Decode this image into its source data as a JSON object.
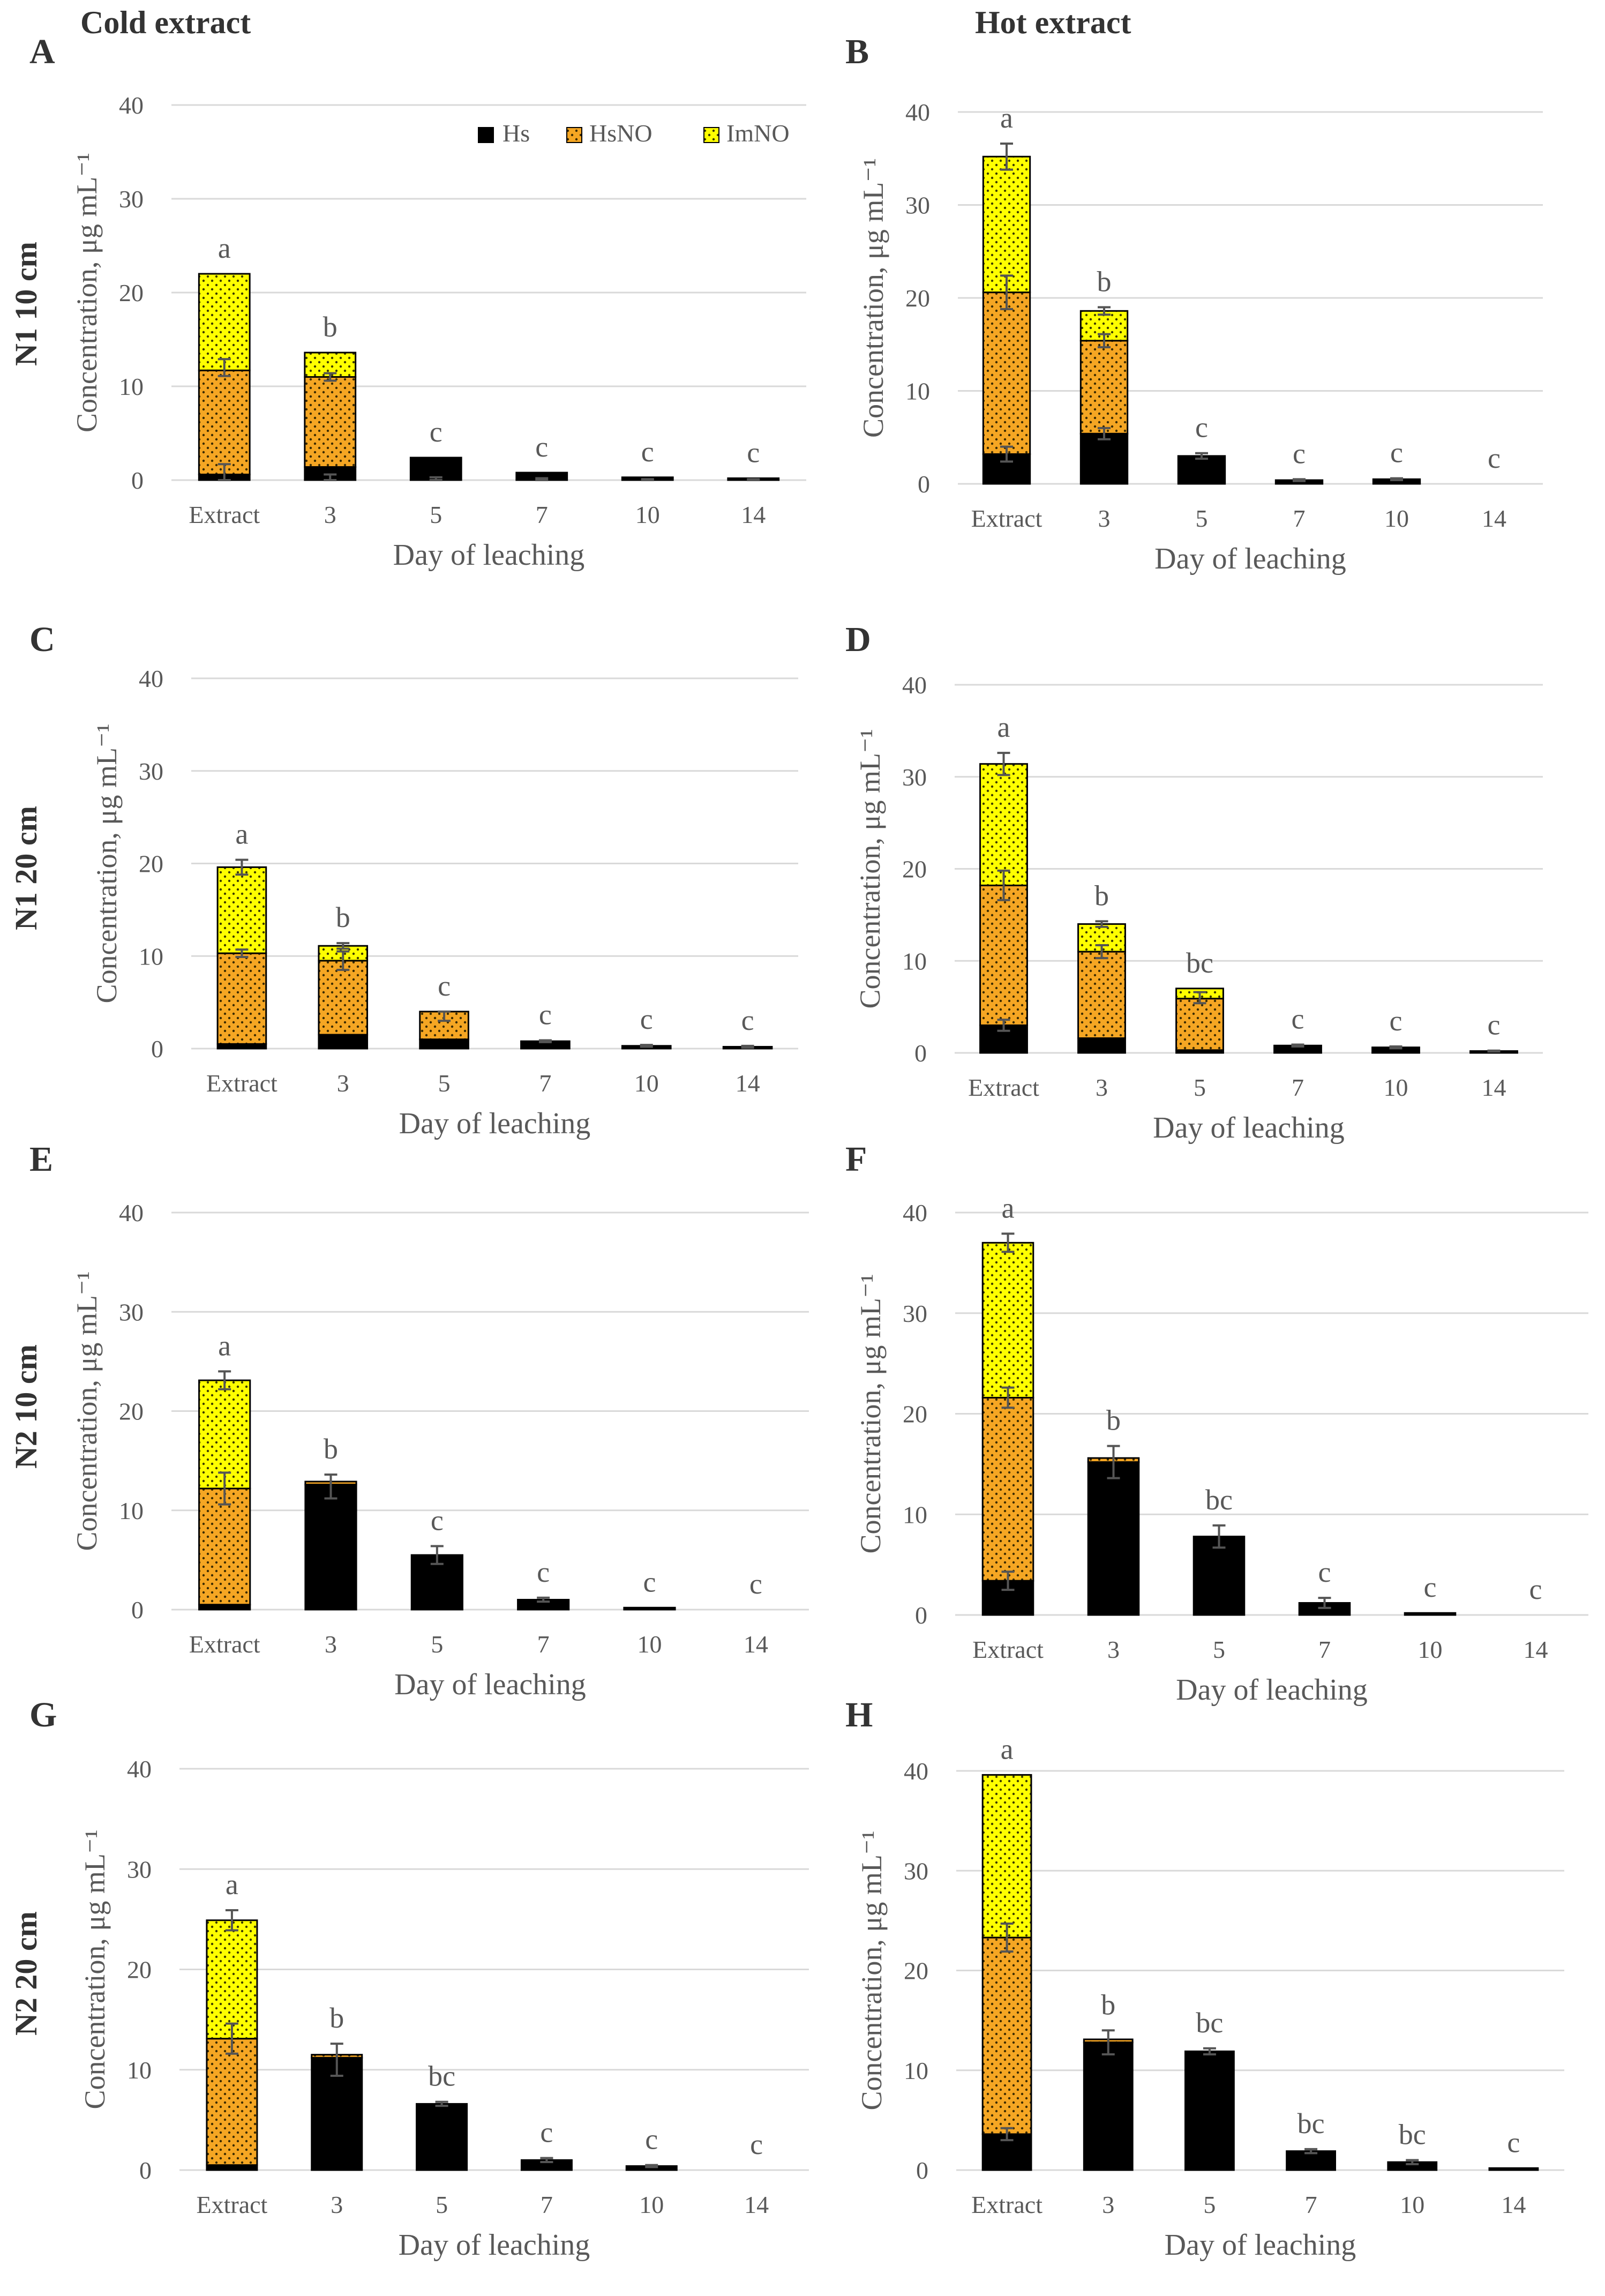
{
  "figure": {
    "col_titles": [
      "Cold extract",
      "Hot extract"
    ],
    "legend": [
      {
        "name": "Hs",
        "color": "#000000"
      },
      {
        "name": "HsNO",
        "color": "#f5a623"
      },
      {
        "name": "ImNO",
        "color": "#ffff00"
      }
    ]
  },
  "chart_data": [
    {
      "type": "bar",
      "stacked": true,
      "panel": "A",
      "row_label": "N1 10 cm",
      "column": "Cold extract",
      "xlabel": "Day of leaching",
      "ylabel": "Concentration, μg mL⁻¹",
      "ylim": [
        0,
        40
      ],
      "yticks": [
        0,
        10,
        20,
        30,
        40
      ],
      "categories": [
        "Extract",
        "3",
        "5",
        "7",
        "10",
        "14"
      ],
      "series": [
        {
          "name": "Hs",
          "values": [
            0.6,
            1.4,
            2.4,
            0.8,
            0.3,
            0.2
          ]
        },
        {
          "name": "HsNO",
          "values": [
            11.1,
            9.6,
            0,
            0,
            0,
            0
          ]
        },
        {
          "name": "ImNO",
          "values": [
            10.3,
            2.6,
            0,
            0,
            0,
            0
          ]
        }
      ],
      "errors": [
        [
          0.5,
          1.2,
          12.0,
          0.9
        ],
        [
          0,
          0.6,
          11.0,
          0.4
        ],
        [
          0,
          0.3,
          0,
          0
        ],
        [
          0,
          0.2,
          0,
          0
        ],
        [
          0,
          0.1,
          0,
          0
        ],
        [
          0,
          0.1,
          0,
          0
        ]
      ],
      "letters": [
        "a",
        "b",
        "c",
        "c",
        "c",
        "c"
      ]
    },
    {
      "type": "bar",
      "stacked": true,
      "panel": "B",
      "row_label": "",
      "column": "Hot extract",
      "xlabel": "Day of leaching",
      "ylabel": "Concentration, μg mL⁻¹",
      "ylim": [
        0,
        40
      ],
      "yticks": [
        0,
        10,
        20,
        30,
        40
      ],
      "categories": [
        "Extract",
        "3",
        "5",
        "7",
        "10",
        "14"
      ],
      "series": [
        {
          "name": "Hs",
          "values": [
            3.2,
            5.4,
            3.0,
            0.4,
            0.5,
            0
          ]
        },
        {
          "name": "HsNO",
          "values": [
            17.4,
            10.0,
            0,
            0,
            0,
            0
          ]
        },
        {
          "name": "ImNO",
          "values": [
            14.6,
            3.2,
            0,
            0,
            0,
            0
          ]
        }
      ],
      "errors": [
        [
          3.2,
          0.8,
          20.6,
          1.8,
          35.2,
          1.4
        ],
        [
          5.4,
          0.6,
          15.4,
          0.7,
          18.6,
          0.4
        ],
        [
          3.0,
          0.3
        ],
        [
          0.4,
          0.1
        ],
        [
          0.5,
          0.1
        ],
        [
          0,
          0
        ]
      ],
      "letters": [
        "a",
        "b",
        "c",
        "c",
        "c",
        "c"
      ]
    },
    {
      "type": "bar",
      "stacked": true,
      "panel": "C",
      "row_label": "N1 20 cm",
      "column": "Cold extract",
      "xlabel": "Day of leaching",
      "ylabel": "Concentration, μg mL⁻¹",
      "ylim": [
        0,
        40
      ],
      "yticks": [
        0,
        10,
        20,
        30,
        40
      ],
      "categories": [
        "Extract",
        "3",
        "5",
        "7",
        "10",
        "14"
      ],
      "series": [
        {
          "name": "Hs",
          "values": [
            0.5,
            1.5,
            1.0,
            0.8,
            0.3,
            0.2
          ]
        },
        {
          "name": "HsNO",
          "values": [
            9.8,
            8.0,
            3.0,
            0,
            0,
            0
          ]
        },
        {
          "name": "ImNO",
          "values": [
            9.3,
            1.6,
            0,
            0,
            0,
            0
          ]
        }
      ],
      "errors": [
        [
          10.3,
          0.4,
          19.6,
          0.8
        ],
        [
          9.5,
          1.0,
          11.1,
          0.3
        ],
        [
          3.5,
          0.5
        ],
        [
          0.8,
          0.1
        ],
        [
          0.3,
          0.1
        ],
        [
          0.2,
          0.1
        ]
      ],
      "letters": [
        "a",
        "b",
        "c",
        "c",
        "c",
        "c"
      ]
    },
    {
      "type": "bar",
      "stacked": true,
      "panel": "D",
      "row_label": "",
      "column": "Hot extract",
      "xlabel": "Day of leaching",
      "ylabel": "Concentration, μg mL⁻¹",
      "ylim": [
        0,
        40
      ],
      "yticks": [
        0,
        10,
        20,
        30,
        40
      ],
      "categories": [
        "Extract",
        "3",
        "5",
        "7",
        "10",
        "14"
      ],
      "series": [
        {
          "name": "Hs",
          "values": [
            3.0,
            1.6,
            0.3,
            0.8,
            0.6,
            0.2
          ]
        },
        {
          "name": "HsNO",
          "values": [
            15.2,
            9.4,
            5.6,
            0,
            0,
            0
          ]
        },
        {
          "name": "ImNO",
          "values": [
            13.2,
            3.0,
            1.1,
            0,
            0,
            0
          ]
        }
      ],
      "errors": [
        [
          3.0,
          0.6,
          18.2,
          1.6,
          31.4,
          1.2
        ],
        [
          11.0,
          0.7,
          14.0,
          0.3
        ],
        [
          6.0,
          0.6
        ],
        [
          0.8,
          0.1
        ],
        [
          0.6,
          0.1
        ],
        [
          0.2,
          0.05
        ]
      ],
      "letters": [
        "a",
        "b",
        "bc",
        "c",
        "c",
        "c"
      ]
    },
    {
      "type": "bar",
      "stacked": true,
      "panel": "E",
      "row_label": "N2 10 cm",
      "column": "Cold extract",
      "xlabel": "Day of leaching",
      "ylabel": "Concentration, μg mL⁻¹",
      "ylim": [
        0,
        40
      ],
      "yticks": [
        0,
        10,
        20,
        30,
        40
      ],
      "categories": [
        "Extract",
        "3",
        "5",
        "7",
        "10",
        "14"
      ],
      "series": [
        {
          "name": "Hs",
          "values": [
            0.5,
            12.6,
            5.5,
            1.0,
            0.2,
            0
          ]
        },
        {
          "name": "HsNO",
          "values": [
            11.7,
            0.3,
            0,
            0,
            0,
            0
          ]
        },
        {
          "name": "ImNO",
          "values": [
            10.9,
            0,
            0,
            0,
            0,
            0
          ]
        }
      ],
      "errors": [
        [
          12.2,
          1.6,
          23.1,
          0.9
        ],
        [
          12.4,
          1.2
        ],
        [
          5.5,
          0.9
        ],
        [
          1.0,
          0.2
        ],
        [
          0.2,
          0
        ],
        [
          0,
          0
        ]
      ],
      "letters": [
        "a",
        "b",
        "c",
        "c",
        "c",
        "c"
      ]
    },
    {
      "type": "bar",
      "stacked": true,
      "panel": "F",
      "row_label": "",
      "column": "Hot extract",
      "xlabel": "Day of leaching",
      "ylabel": "Concentration, μg mL⁻¹",
      "ylim": [
        0,
        40
      ],
      "yticks": [
        0,
        10,
        20,
        30,
        40
      ],
      "categories": [
        "Extract",
        "3",
        "5",
        "7",
        "10",
        "14"
      ],
      "series": [
        {
          "name": "Hs",
          "values": [
            3.4,
            15.2,
            7.8,
            1.2,
            0.2,
            0
          ]
        },
        {
          "name": "HsNO",
          "values": [
            18.2,
            0.4,
            0,
            0,
            0,
            0
          ]
        },
        {
          "name": "ImNO",
          "values": [
            15.4,
            0,
            0,
            0,
            0,
            0
          ]
        }
      ],
      "errors": [
        [
          3.4,
          0.9,
          21.6,
          1.0,
          37.0,
          0.9
        ],
        [
          15.2,
          1.6
        ],
        [
          7.8,
          1.1
        ],
        [
          1.2,
          0.5
        ],
        [
          0.2,
          0
        ],
        [
          0,
          0
        ]
      ],
      "letters": [
        "a",
        "b",
        "bc",
        "c",
        "c",
        "c"
      ]
    },
    {
      "type": "bar",
      "stacked": true,
      "panel": "G",
      "row_label": "N2 20 cm",
      "column": "Cold extract",
      "xlabel": "Day of leaching",
      "ylabel": "Concentration, μg mL⁻¹",
      "ylim": [
        0,
        40
      ],
      "yticks": [
        0,
        10,
        20,
        30,
        40
      ],
      "categories": [
        "Extract",
        "3",
        "5",
        "7",
        "10",
        "14"
      ],
      "series": [
        {
          "name": "Hs",
          "values": [
            0.5,
            11.2,
            6.6,
            1.0,
            0.4,
            0
          ]
        },
        {
          "name": "HsNO",
          "values": [
            12.6,
            0.3,
            0,
            0,
            0,
            0
          ]
        },
        {
          "name": "ImNO",
          "values": [
            11.8,
            0,
            0,
            0,
            0,
            0
          ]
        }
      ],
      "errors": [
        [
          13.1,
          1.5,
          24.9,
          1.0
        ],
        [
          11.0,
          1.6
        ],
        [
          6.6,
          0.2
        ],
        [
          1.0,
          0.2
        ],
        [
          0.4,
          0.1
        ],
        [
          0,
          0
        ]
      ],
      "letters": [
        "a",
        "b",
        "bc",
        "c",
        "c",
        "c"
      ]
    },
    {
      "type": "bar",
      "stacked": true,
      "panel": "H",
      "row_label": "",
      "column": "Hot extract",
      "xlabel": "Day of leaching",
      "ylabel": "Concentration, μg mL⁻¹",
      "ylim": [
        0,
        40
      ],
      "yticks": [
        0,
        10,
        20,
        30,
        40
      ],
      "categories": [
        "Extract",
        "3",
        "5",
        "7",
        "10",
        "14"
      ],
      "series": [
        {
          "name": "Hs",
          "values": [
            3.6,
            12.8,
            11.9,
            1.9,
            0.8,
            0.2
          ]
        },
        {
          "name": "HsNO",
          "values": [
            19.7,
            0.3,
            0,
            0,
            0,
            0
          ]
        },
        {
          "name": "ImNO",
          "values": [
            16.3,
            0,
            0,
            0,
            0,
            0
          ]
        }
      ],
      "errors": [
        [
          3.6,
          0.6,
          23.3,
          1.4
        ],
        [
          12.8,
          1.2
        ],
        [
          11.9,
          0.3
        ],
        [
          1.9,
          0.2
        ],
        [
          0.8,
          0.2
        ],
        [
          0.2,
          0
        ]
      ],
      "letters": [
        "a",
        "b",
        "bc",
        "bc",
        "bc",
        "c"
      ]
    }
  ]
}
